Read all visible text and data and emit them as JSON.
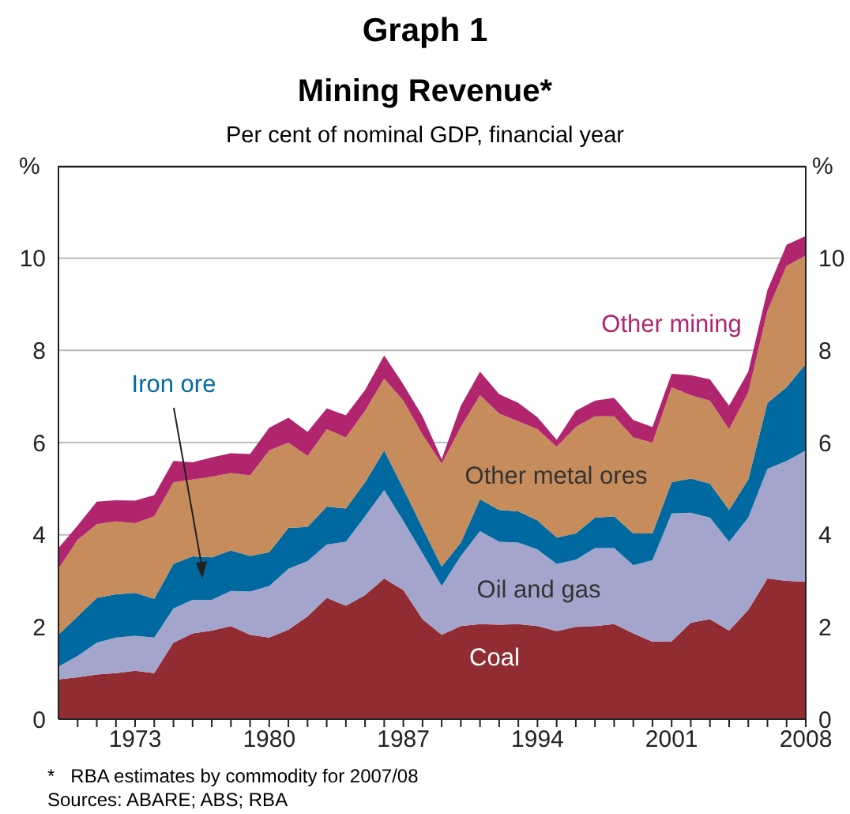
{
  "chart_data": {
    "type": "area",
    "stacked": true,
    "title": "Mining Revenue*",
    "subtitle": "Per cent of nominal GDP, financial year",
    "ylabel": "%",
    "y2label": "%",
    "annotations": [
      "Graph 1",
      "*   RBA estimates by commodity for 2007/08",
      "Sources: ABARE; ABS; RBA"
    ],
    "x": [
      1969,
      1970,
      1971,
      1972,
      1973,
      1974,
      1975,
      1976,
      1977,
      1978,
      1979,
      1980,
      1981,
      1982,
      1983,
      1984,
      1985,
      1986,
      1987,
      1988,
      1989,
      1990,
      1991,
      1992,
      1993,
      1994,
      1995,
      1996,
      1997,
      1998,
      1999,
      2000,
      2001,
      2002,
      2003,
      2004,
      2005,
      2006,
      2007,
      2008
    ],
    "xlim": [
      1969,
      2008
    ],
    "xticks": [
      {
        "value": 1970,
        "label": null
      },
      {
        "value": 1971,
        "label": null
      },
      {
        "value": 1972,
        "label": null
      },
      1973,
      {
        "value": 1974,
        "label": null
      },
      {
        "value": 1975,
        "label": null
      },
      {
        "value": 1976,
        "label": null
      },
      {
        "value": 1977,
        "label": null
      },
      {
        "value": 1978,
        "label": null
      },
      {
        "value": 1979,
        "label": null
      },
      1980,
      {
        "value": 1981,
        "label": null
      },
      {
        "value": 1982,
        "label": null
      },
      {
        "value": 1983,
        "label": null
      },
      {
        "value": 1984,
        "label": null
      },
      {
        "value": 1985,
        "label": null
      },
      {
        "value": 1986,
        "label": null
      },
      1987,
      {
        "value": 1988,
        "label": null
      },
      {
        "value": 1989,
        "label": null
      },
      {
        "value": 1990,
        "label": null
      },
      {
        "value": 1991,
        "label": null
      },
      {
        "value": 1992,
        "label": null
      },
      {
        "value": 1993,
        "label": null
      },
      1994,
      {
        "value": 1995,
        "label": null
      },
      {
        "value": 1996,
        "label": null
      },
      {
        "value": 1997,
        "label": null
      },
      {
        "value": 1998,
        "label": null
      },
      {
        "value": 1999,
        "label": null
      },
      {
        "value": 2000,
        "label": null
      },
      2001,
      {
        "value": 2002,
        "label": null
      },
      {
        "value": 2003,
        "label": null
      },
      {
        "value": 2004,
        "label": null
      },
      {
        "value": 2005,
        "label": null
      },
      {
        "value": 2006,
        "label": null
      },
      {
        "value": 2007,
        "label": null
      },
      2008
    ],
    "ylim": [
      0,
      12
    ],
    "yticks": [
      0,
      2,
      4,
      6,
      8,
      10
    ],
    "y2lim": [
      0,
      12
    ],
    "y2ticks": [
      0,
      2,
      4,
      6,
      8,
      10
    ],
    "grid": "y",
    "legend": false,
    "series": [
      {
        "name": "Coal",
        "color": "#922c33",
        "values": [
          0.86,
          0.91,
          0.97,
          1.0,
          1.05,
          1.0,
          1.66,
          1.86,
          1.92,
          2.02,
          1.83,
          1.77,
          1.94,
          2.23,
          2.63,
          2.46,
          2.69,
          3.05,
          2.8,
          2.17,
          1.83,
          2.02,
          2.06,
          2.05,
          2.06,
          2.02,
          1.91,
          2.0,
          2.02,
          2.06,
          1.86,
          1.68,
          1.69,
          2.09,
          2.17,
          1.92,
          2.37,
          3.05,
          3.0,
          2.98
        ]
      },
      {
        "name": "Oil and gas",
        "color": "#a3a5cc",
        "values": [
          0.28,
          0.46,
          0.69,
          0.77,
          0.76,
          0.77,
          0.74,
          0.73,
          0.67,
          0.76,
          0.94,
          1.12,
          1.32,
          1.2,
          1.16,
          1.39,
          1.71,
          1.92,
          1.5,
          1.43,
          1.06,
          1.52,
          2.02,
          1.8,
          1.77,
          1.66,
          1.46,
          1.46,
          1.69,
          1.65,
          1.48,
          1.77,
          2.77,
          2.39,
          2.2,
          1.93,
          2.0,
          2.38,
          2.6,
          2.85
        ]
      },
      {
        "name": "Iron ore",
        "color": "#006aa0",
        "values": [
          0.69,
          0.86,
          0.97,
          0.94,
          0.93,
          0.84,
          0.97,
          0.94,
          0.92,
          0.88,
          0.77,
          0.73,
          0.89,
          0.74,
          0.82,
          0.72,
          0.74,
          0.86,
          0.7,
          0.55,
          0.42,
          0.29,
          0.69,
          0.69,
          0.68,
          0.63,
          0.57,
          0.57,
          0.66,
          0.69,
          0.69,
          0.58,
          0.68,
          0.74,
          0.74,
          0.69,
          0.83,
          1.43,
          1.6,
          1.88
        ]
      },
      {
        "name": "Other metal ores",
        "color": "#c68c5b",
        "values": [
          1.43,
          1.66,
          1.6,
          1.58,
          1.51,
          1.79,
          1.77,
          1.67,
          1.75,
          1.68,
          1.75,
          2.21,
          1.85,
          1.54,
          1.68,
          1.54,
          1.55,
          1.56,
          1.91,
          2.02,
          2.23,
          2.51,
          2.26,
          2.09,
          1.95,
          1.98,
          1.97,
          2.31,
          2.2,
          2.17,
          2.08,
          1.97,
          2.06,
          1.81,
          1.8,
          1.75,
          1.89,
          2.0,
          2.63,
          2.35
        ]
      },
      {
        "name": "Other mining",
        "color": "#b0256e",
        "values": [
          0.45,
          0.31,
          0.49,
          0.46,
          0.49,
          0.46,
          0.46,
          0.37,
          0.42,
          0.43,
          0.46,
          0.49,
          0.54,
          0.52,
          0.45,
          0.48,
          0.45,
          0.5,
          0.35,
          0.4,
          0.1,
          0.46,
          0.51,
          0.42,
          0.4,
          0.26,
          0.15,
          0.35,
          0.34,
          0.4,
          0.38,
          0.34,
          0.29,
          0.43,
          0.46,
          0.51,
          0.45,
          0.45,
          0.46,
          0.42
        ]
      }
    ]
  }
}
